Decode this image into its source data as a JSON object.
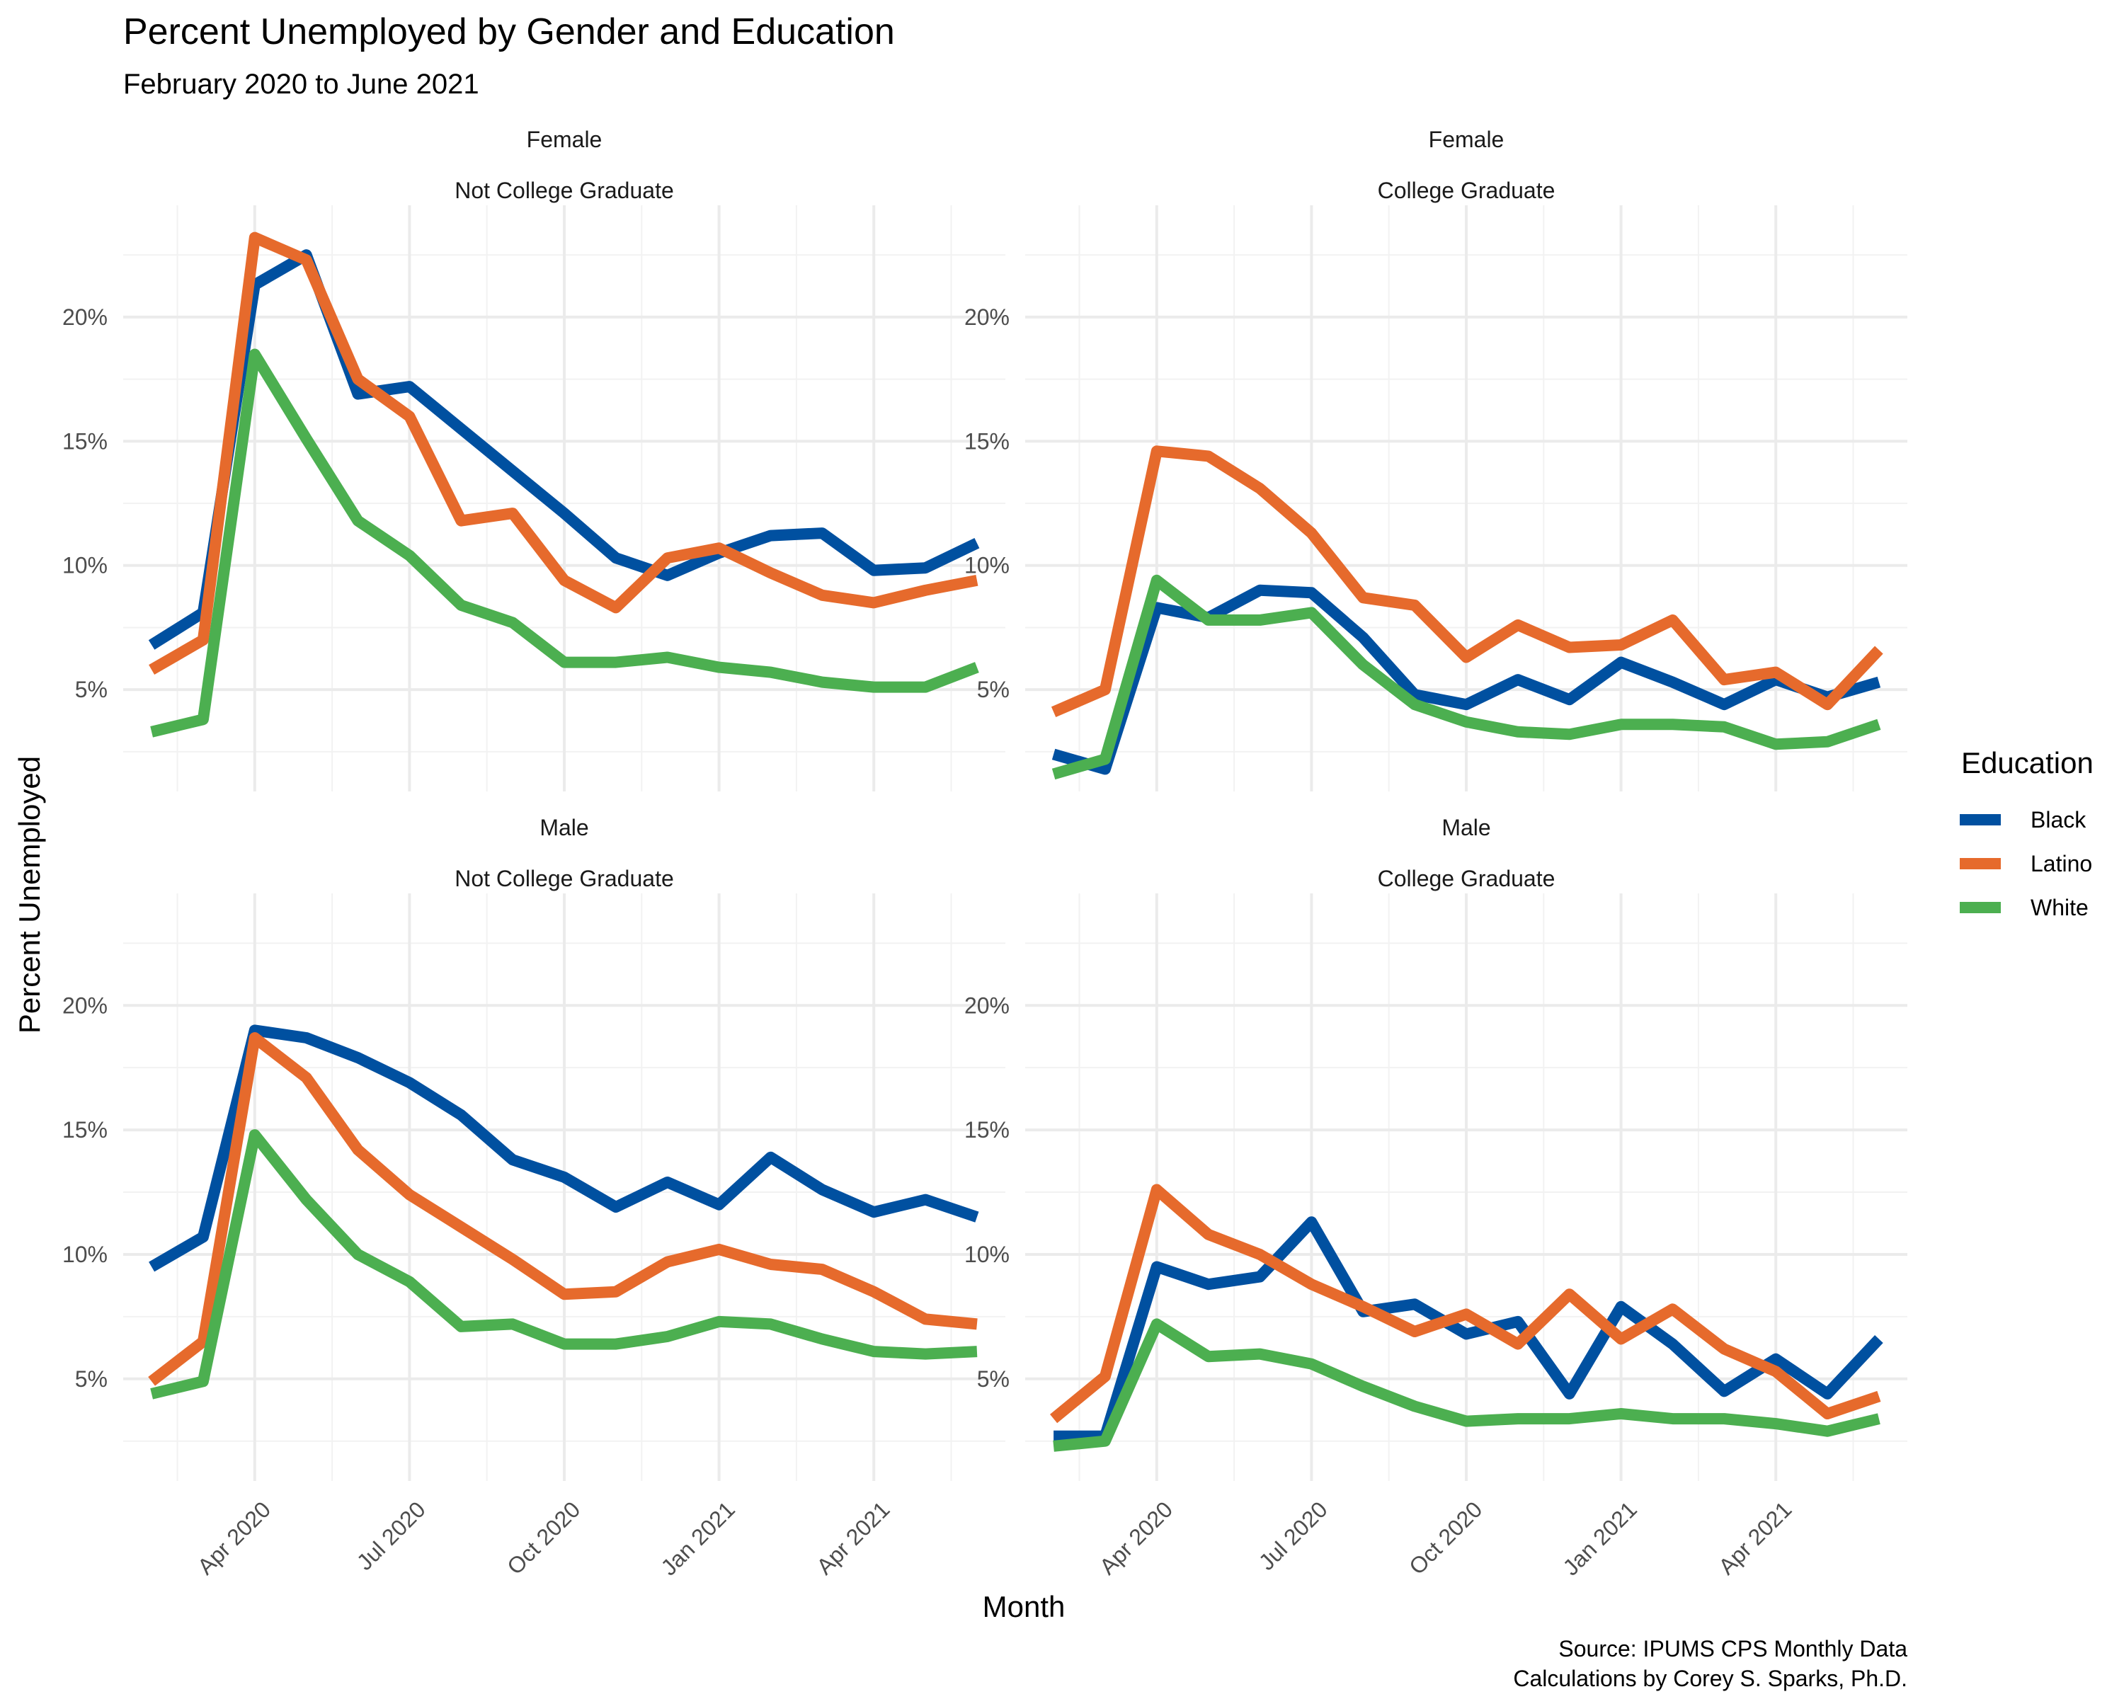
{
  "chart_data": {
    "type": "line",
    "title": "Percent Unemployed by Gender and Education",
    "subtitle": "February 2020 to June 2021",
    "xlabel": "Month",
    "ylabel": "Percent Unemployed",
    "caption": [
      "Source: IPUMS CPS Monthly Data ",
      "Calculations by Corey S. Sparks, Ph.D."
    ],
    "legend": {
      "title": "Education",
      "position": "right"
    },
    "x": [
      "2020-02",
      "2020-03",
      "2020-04",
      "2020-05",
      "2020-06",
      "2020-07",
      "2020-08",
      "2020-09",
      "2020-10",
      "2020-11",
      "2020-12",
      "2021-01",
      "2021-02",
      "2021-03",
      "2021-04",
      "2021-05",
      "2021-06"
    ],
    "x_ticks": [
      {
        "date": "2020-04",
        "label": "Apr 2020"
      },
      {
        "date": "2020-07",
        "label": "Jul 2020"
      },
      {
        "date": "2020-10",
        "label": "Oct 2020"
      },
      {
        "date": "2021-01",
        "label": "Jan 2021"
      },
      {
        "date": "2021-04",
        "label": "Apr 2021"
      }
    ],
    "y_ticks": [
      5,
      10,
      15,
      20
    ],
    "y_tick_format": "%",
    "ylim": [
      0.9,
      24.5
    ],
    "grid": true,
    "series_colors": {
      "Black": "#0050a0",
      "Latino": "#e66a2c",
      "White": "#4caf50"
    },
    "panels": [
      {
        "strip": [
          "Female",
          "Not College Graduate"
        ],
        "series": [
          {
            "name": "Black",
            "values": [
              6.8,
              8.1,
              21.3,
              22.5,
              16.9,
              17.2,
              15.5,
              13.8,
              12.1,
              10.3,
              9.6,
              10.5,
              11.2,
              11.3,
              9.8,
              9.9,
              10.9
            ]
          },
          {
            "name": "Latino",
            "values": [
              5.8,
              7.0,
              23.2,
              22.3,
              17.5,
              16.0,
              11.8,
              12.1,
              9.4,
              8.3,
              10.3,
              10.7,
              9.7,
              8.8,
              8.5,
              9.0,
              9.4
            ]
          },
          {
            "name": "White",
            "values": [
              3.3,
              3.8,
              18.5,
              15.1,
              11.8,
              10.4,
              8.4,
              7.7,
              6.1,
              6.1,
              6.3,
              5.9,
              5.7,
              5.3,
              5.1,
              5.1,
              5.9
            ]
          }
        ]
      },
      {
        "strip": [
          "Female",
          "College Graduate"
        ],
        "series": [
          {
            "name": "Black",
            "values": [
              2.4,
              1.8,
              8.3,
              7.9,
              9.0,
              8.9,
              7.1,
              4.8,
              4.4,
              5.4,
              4.6,
              6.1,
              5.3,
              4.4,
              5.4,
              4.7,
              5.3
            ]
          },
          {
            "name": "Latino",
            "values": [
              4.1,
              5.0,
              14.6,
              14.4,
              13.1,
              11.3,
              8.7,
              8.4,
              6.3,
              7.6,
              6.7,
              6.8,
              7.8,
              5.4,
              5.7,
              4.4,
              6.6
            ]
          },
          {
            "name": "White",
            "values": [
              1.6,
              2.2,
              9.4,
              7.8,
              7.8,
              8.1,
              6.0,
              4.4,
              3.7,
              3.3,
              3.2,
              3.6,
              3.6,
              3.5,
              2.8,
              2.9,
              3.6
            ]
          }
        ]
      },
      {
        "strip": [
          "Male",
          "Not College Graduate"
        ],
        "series": [
          {
            "name": "Black",
            "values": [
              9.5,
              10.7,
              19.0,
              18.7,
              17.9,
              16.9,
              15.6,
              13.8,
              13.1,
              11.9,
              12.9,
              12.0,
              13.9,
              12.6,
              11.7,
              12.2,
              11.5
            ]
          },
          {
            "name": "Latino",
            "values": [
              4.9,
              6.5,
              18.7,
              17.1,
              14.2,
              12.4,
              11.1,
              9.8,
              8.4,
              8.5,
              9.7,
              10.2,
              9.6,
              9.4,
              8.5,
              7.4,
              7.2
            ]
          },
          {
            "name": "White",
            "values": [
              4.4,
              4.9,
              14.8,
              12.2,
              10.0,
              8.9,
              7.1,
              7.2,
              6.4,
              6.4,
              6.7,
              7.3,
              7.2,
              6.6,
              6.1,
              6.0,
              6.1
            ]
          }
        ]
      },
      {
        "strip": [
          "Male",
          "College Graduate"
        ],
        "series": [
          {
            "name": "Black",
            "values": [
              2.7,
              2.7,
              9.5,
              8.8,
              9.1,
              11.3,
              7.7,
              8.0,
              6.8,
              7.3,
              4.4,
              7.9,
              6.4,
              4.5,
              5.8,
              4.4,
              6.6
            ]
          },
          {
            "name": "Latino",
            "values": [
              3.4,
              5.1,
              12.6,
              10.8,
              10.0,
              8.8,
              7.9,
              6.9,
              7.6,
              6.4,
              8.4,
              6.6,
              7.8,
              6.2,
              5.3,
              3.6,
              4.3
            ]
          },
          {
            "name": "White",
            "values": [
              2.3,
              2.5,
              7.2,
              5.9,
              6.0,
              5.6,
              4.7,
              3.9,
              3.3,
              3.4,
              3.4,
              3.6,
              3.4,
              3.4,
              3.2,
              2.9,
              3.4
            ]
          }
        ]
      }
    ]
  }
}
